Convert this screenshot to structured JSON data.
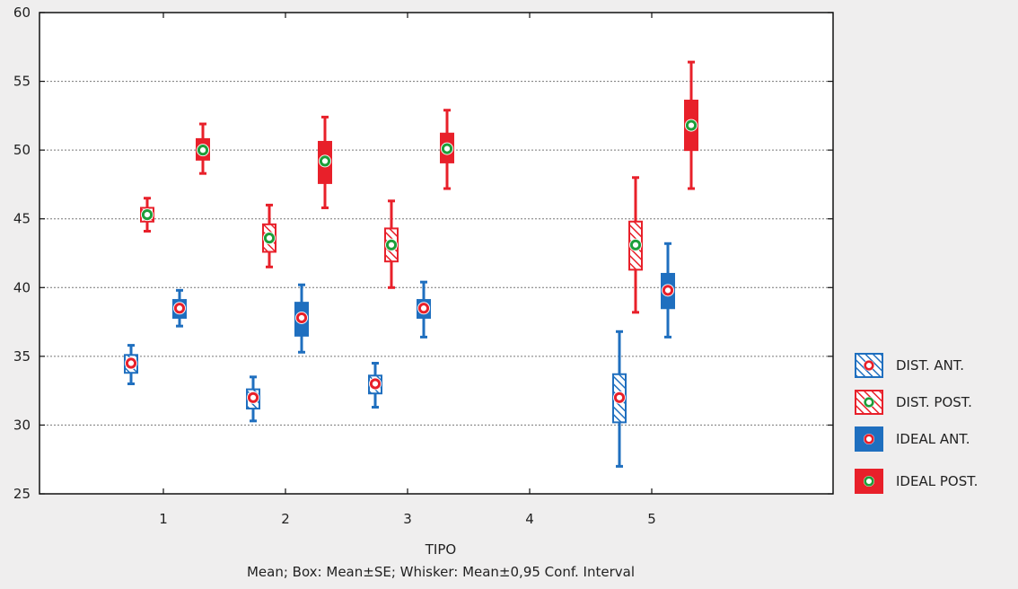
{
  "chart_data": {
    "type": "box",
    "xlabel": "TIPO",
    "caption": "Mean; Box: Mean±SE; Whisker: Mean±0,95 Conf. Interval",
    "categories": [
      "1",
      "2",
      "3",
      "4",
      "5"
    ],
    "ylim": [
      25,
      60
    ],
    "yticks": [
      25,
      30,
      35,
      40,
      45,
      50,
      55,
      60
    ],
    "grid": true,
    "legend_position": "right",
    "series": [
      {
        "name": "DIST. ANT.",
        "color": "#1f6fbf",
        "fill": "hatched",
        "marker_color": "#e8202a",
        "points": [
          {
            "x": "1",
            "mean": 34.5,
            "se_low": 33.8,
            "se_high": 35.1,
            "ci_low": 33.0,
            "ci_high": 35.8
          },
          {
            "x": "2",
            "mean": 32.0,
            "se_low": 31.2,
            "se_high": 32.6,
            "ci_low": 30.3,
            "ci_high": 33.5
          },
          {
            "x": "3",
            "mean": 33.0,
            "se_low": 32.3,
            "se_high": 33.6,
            "ci_low": 31.3,
            "ci_high": 34.5
          },
          {
            "x": "5",
            "mean": 32.0,
            "se_low": 30.2,
            "se_high": 33.7,
            "ci_low": 27.0,
            "ci_high": 36.8
          }
        ]
      },
      {
        "name": "DIST. POST.",
        "color": "#e8202a",
        "fill": "hatched",
        "marker_color": "#1e9e3a",
        "points": [
          {
            "x": "1",
            "mean": 45.3,
            "se_low": 44.8,
            "se_high": 45.8,
            "ci_low": 44.1,
            "ci_high": 46.5
          },
          {
            "x": "2",
            "mean": 43.6,
            "se_low": 42.6,
            "se_high": 44.6,
            "ci_low": 41.5,
            "ci_high": 46.0
          },
          {
            "x": "3",
            "mean": 43.1,
            "se_low": 41.9,
            "se_high": 44.3,
            "ci_low": 40.0,
            "ci_high": 46.3
          },
          {
            "x": "5",
            "mean": 43.1,
            "se_low": 41.3,
            "se_high": 44.8,
            "ci_low": 38.2,
            "ci_high": 48.0
          }
        ]
      },
      {
        "name": "IDEAL ANT.",
        "color": "#1f6fbf",
        "fill": "solid",
        "marker_color": "#e8202a",
        "points": [
          {
            "x": "1",
            "mean": 38.5,
            "se_low": 37.8,
            "se_high": 39.1,
            "ci_low": 37.2,
            "ci_high": 39.8
          },
          {
            "x": "2",
            "mean": 37.8,
            "se_low": 36.5,
            "se_high": 38.9,
            "ci_low": 35.3,
            "ci_high": 40.2
          },
          {
            "x": "3",
            "mean": 38.5,
            "se_low": 37.8,
            "se_high": 39.1,
            "ci_low": 36.4,
            "ci_high": 40.4
          },
          {
            "x": "5",
            "mean": 39.8,
            "se_low": 38.5,
            "se_high": 41.0,
            "ci_low": 36.4,
            "ci_high": 43.2
          }
        ]
      },
      {
        "name": "IDEAL POST.",
        "color": "#e8202a",
        "fill": "solid",
        "marker_color": "#1e9e3a",
        "points": [
          {
            "x": "1",
            "mean": 50.0,
            "se_low": 49.3,
            "se_high": 50.8,
            "ci_low": 48.3,
            "ci_high": 51.9
          },
          {
            "x": "2",
            "mean": 49.2,
            "se_low": 47.6,
            "se_high": 50.6,
            "ci_low": 45.8,
            "ci_high": 52.4
          },
          {
            "x": "3",
            "mean": 50.1,
            "se_low": 49.1,
            "se_high": 51.2,
            "ci_low": 47.2,
            "ci_high": 52.9
          },
          {
            "x": "5",
            "mean": 51.8,
            "se_low": 50.0,
            "se_high": 53.6,
            "ci_low": 47.2,
            "ci_high": 56.4
          }
        ]
      }
    ]
  }
}
